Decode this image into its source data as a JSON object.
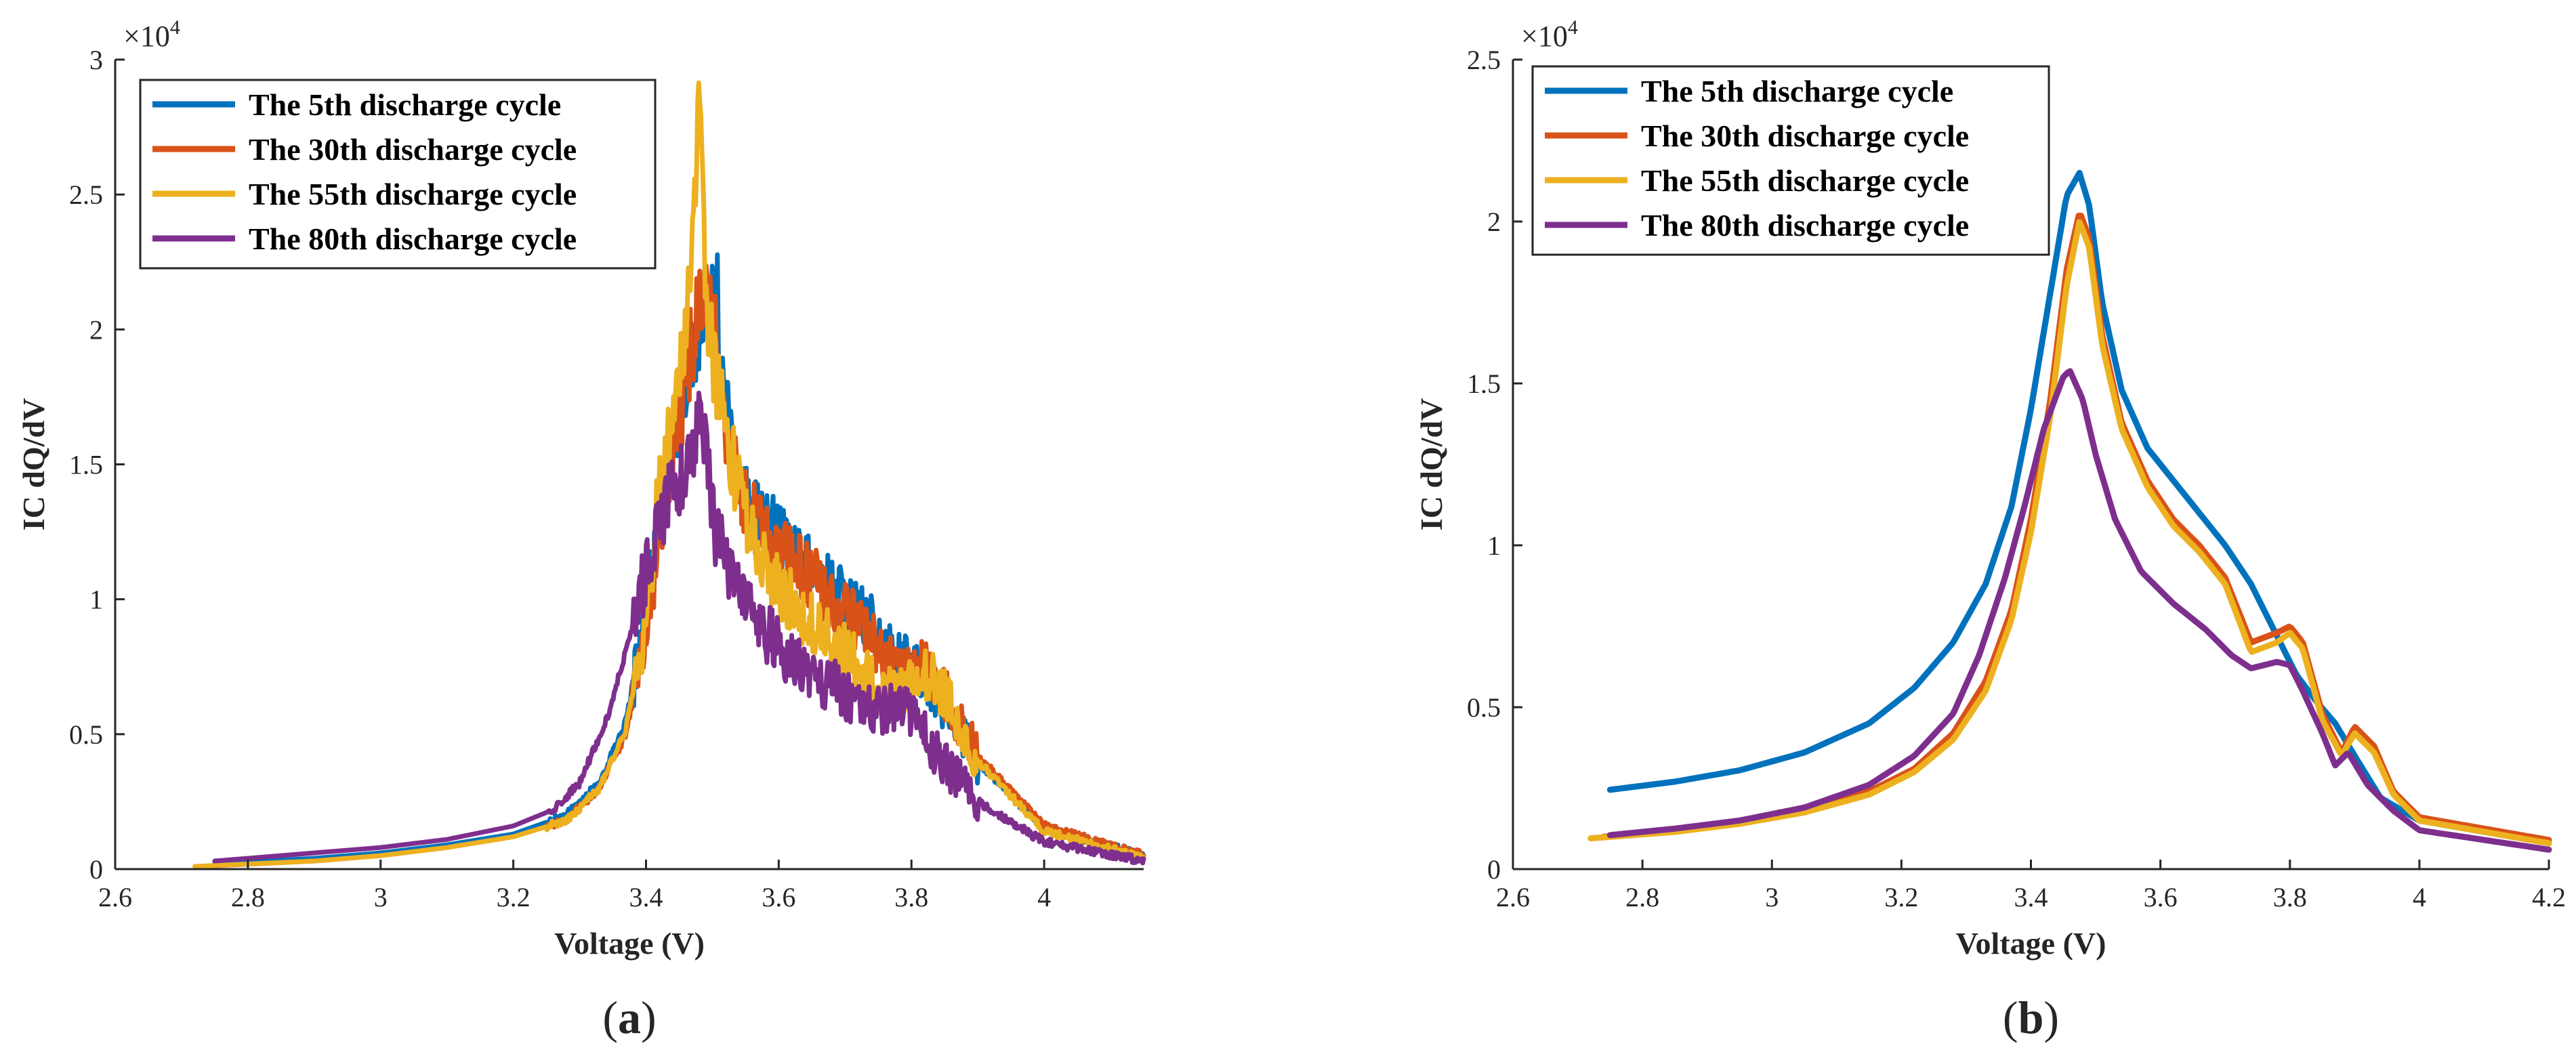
{
  "chart_data": [
    {
      "id": "a",
      "type": "line",
      "panel_label_prefix": "(",
      "panel_letter": "a",
      "panel_label_suffix": ")",
      "xlabel": "Voltage (V)",
      "ylabel": "IC dQ/dV",
      "y_multiplier_prefix": "×10",
      "y_multiplier_exp": "4",
      "xlim": [
        2.6,
        4.15
      ],
      "ylim": [
        0,
        3
      ],
      "xticks": [
        2.6,
        2.8,
        3,
        3.2,
        3.4,
        3.6,
        3.8,
        4
      ],
      "xtick_labels": [
        "2.6",
        "2.8",
        "3",
        "3.2",
        "3.4",
        "3.6",
        "3.8",
        "4"
      ],
      "yticks": [
        0,
        0.5,
        1,
        1.5,
        2,
        2.5,
        3
      ],
      "ytick_labels": [
        "0",
        "0.5",
        "1",
        "1.5",
        "2",
        "2.5",
        "3"
      ],
      "noisy": true,
      "series": [
        {
          "name": "The 5th discharge cycle",
          "color": "#0072BD",
          "x": [
            2.75,
            2.9,
            3.0,
            3.1,
            3.2,
            3.28,
            3.33,
            3.37,
            3.4,
            3.43,
            3.46,
            3.48,
            3.5,
            3.505,
            3.52,
            3.55,
            3.6,
            3.65,
            3.7,
            3.75,
            3.78,
            3.82,
            3.85,
            3.9,
            4.0,
            4.15
          ],
          "y": [
            0.02,
            0.04,
            0.06,
            0.09,
            0.13,
            0.2,
            0.32,
            0.55,
            0.95,
            1.45,
            1.85,
            2.0,
            2.1,
            2.18,
            1.7,
            1.4,
            1.22,
            1.1,
            1.0,
            0.88,
            0.78,
            0.72,
            0.6,
            0.4,
            0.15,
            0.05
          ]
        },
        {
          "name": "The 30th discharge cycle",
          "color": "#D95319",
          "x": [
            2.73,
            2.9,
            3.0,
            3.1,
            3.2,
            3.28,
            3.33,
            3.37,
            3.4,
            3.43,
            3.46,
            3.485,
            3.5,
            3.52,
            3.55,
            3.6,
            3.65,
            3.7,
            3.75,
            3.78,
            3.82,
            3.85,
            3.9,
            4.0,
            4.15
          ],
          "y": [
            0.01,
            0.03,
            0.05,
            0.08,
            0.12,
            0.18,
            0.3,
            0.5,
            0.88,
            1.4,
            1.82,
            2.12,
            2.05,
            1.65,
            1.35,
            1.18,
            1.08,
            0.95,
            0.82,
            0.72,
            0.75,
            0.65,
            0.42,
            0.16,
            0.05
          ]
        },
        {
          "name": "The 55th discharge cycle",
          "color": "#EDB120",
          "x": [
            2.72,
            2.9,
            3.0,
            3.1,
            3.2,
            3.28,
            3.33,
            3.37,
            3.4,
            3.42,
            3.45,
            3.47,
            3.48,
            3.49,
            3.51,
            3.54,
            3.58,
            3.63,
            3.7,
            3.76,
            3.8,
            3.83,
            3.86,
            3.9,
            4.0,
            4.15
          ],
          "y": [
            0.01,
            0.03,
            0.05,
            0.08,
            0.12,
            0.18,
            0.3,
            0.52,
            0.92,
            1.4,
            1.85,
            2.3,
            2.84,
            2.1,
            1.75,
            1.4,
            1.12,
            0.95,
            0.8,
            0.65,
            0.68,
            0.74,
            0.6,
            0.4,
            0.14,
            0.04
          ]
        },
        {
          "name": "The 80th discharge cycle",
          "color": "#7E2F8E",
          "x": [
            2.75,
            2.9,
            3.0,
            3.1,
            3.2,
            3.26,
            3.3,
            3.34,
            3.38,
            3.41,
            3.44,
            3.47,
            3.48,
            3.5,
            3.53,
            3.57,
            3.62,
            3.68,
            3.74,
            3.78,
            3.8,
            3.84,
            3.9,
            4.0,
            4.15
          ],
          "y": [
            0.03,
            0.06,
            0.08,
            0.11,
            0.16,
            0.22,
            0.32,
            0.55,
            0.9,
            1.2,
            1.4,
            1.5,
            1.78,
            1.3,
            1.05,
            0.9,
            0.78,
            0.68,
            0.58,
            0.6,
            0.58,
            0.42,
            0.25,
            0.1,
            0.03
          ]
        }
      ]
    },
    {
      "id": "b",
      "type": "line",
      "panel_label_prefix": "(",
      "panel_letter": "b",
      "panel_label_suffix": ")",
      "xlabel": "Voltage (V)",
      "ylabel": "IC dQ/dV",
      "y_multiplier_prefix": "×10",
      "y_multiplier_exp": "4",
      "xlim": [
        2.6,
        4.2
      ],
      "ylim": [
        0,
        2.5
      ],
      "xticks": [
        2.6,
        2.8,
        3,
        3.2,
        3.4,
        3.6,
        3.8,
        4,
        4.2
      ],
      "xtick_labels": [
        "2.6",
        "2.8",
        "3",
        "3.2",
        "3.4",
        "3.6",
        "3.8",
        "4",
        "4.2"
      ],
      "yticks": [
        0,
        0.5,
        1,
        1.5,
        2,
        2.5
      ],
      "ytick_labels": [
        "0",
        "0.5",
        "1",
        "1.5",
        "2",
        "2.5"
      ],
      "noisy": false,
      "series": [
        {
          "name": "The 5th discharge cycle",
          "color": "#0072BD",
          "x": [
            2.75,
            2.85,
            2.95,
            3.05,
            3.15,
            3.22,
            3.28,
            3.33,
            3.37,
            3.4,
            3.43,
            3.455,
            3.475,
            3.49,
            3.51,
            3.54,
            3.58,
            3.62,
            3.66,
            3.7,
            3.74,
            3.78,
            3.81,
            3.84,
            3.87,
            3.9,
            3.94,
            4.0,
            4.2
          ],
          "y": [
            0.245,
            0.27,
            0.305,
            0.36,
            0.45,
            0.56,
            0.7,
            0.88,
            1.12,
            1.42,
            1.78,
            2.08,
            2.15,
            2.05,
            1.75,
            1.48,
            1.3,
            1.2,
            1.1,
            1.0,
            0.88,
            0.72,
            0.6,
            0.52,
            0.45,
            0.35,
            0.22,
            0.15,
            0.08
          ]
        },
        {
          "name": "The 30th discharge cycle",
          "color": "#D95319",
          "x": [
            2.74,
            2.85,
            2.95,
            3.05,
            3.15,
            3.22,
            3.28,
            3.33,
            3.37,
            3.4,
            3.43,
            3.455,
            3.475,
            3.49,
            3.51,
            3.54,
            3.58,
            3.62,
            3.66,
            3.7,
            3.74,
            3.78,
            3.8,
            3.82,
            3.85,
            3.88,
            3.9,
            3.93,
            3.96,
            4.0,
            4.2
          ],
          "y": [
            0.1,
            0.12,
            0.145,
            0.18,
            0.24,
            0.31,
            0.42,
            0.58,
            0.8,
            1.08,
            1.45,
            1.85,
            2.03,
            1.95,
            1.65,
            1.38,
            1.2,
            1.08,
            1.0,
            0.9,
            0.7,
            0.73,
            0.75,
            0.7,
            0.48,
            0.36,
            0.44,
            0.38,
            0.24,
            0.16,
            0.09
          ]
        },
        {
          "name": "The 55th discharge cycle",
          "color": "#EDB120",
          "x": [
            2.72,
            2.85,
            2.95,
            3.05,
            3.15,
            3.22,
            3.28,
            3.33,
            3.37,
            3.4,
            3.43,
            3.455,
            3.475,
            3.49,
            3.51,
            3.54,
            3.58,
            3.62,
            3.66,
            3.7,
            3.74,
            3.78,
            3.8,
            3.82,
            3.85,
            3.88,
            3.9,
            3.93,
            3.96,
            4.0,
            4.2
          ],
          "y": [
            0.095,
            0.115,
            0.14,
            0.175,
            0.23,
            0.3,
            0.4,
            0.55,
            0.77,
            1.04,
            1.4,
            1.8,
            2.0,
            1.92,
            1.62,
            1.36,
            1.18,
            1.06,
            0.98,
            0.88,
            0.67,
            0.7,
            0.73,
            0.68,
            0.46,
            0.35,
            0.42,
            0.36,
            0.23,
            0.15,
            0.08
          ]
        },
        {
          "name": "The 80th discharge cycle",
          "color": "#7E2F8E",
          "x": [
            2.75,
            2.85,
            2.95,
            3.05,
            3.15,
            3.22,
            3.28,
            3.32,
            3.36,
            3.39,
            3.42,
            3.45,
            3.46,
            3.48,
            3.5,
            3.53,
            3.57,
            3.62,
            3.67,
            3.71,
            3.74,
            3.78,
            3.8,
            3.82,
            3.85,
            3.87,
            3.89,
            3.92,
            3.96,
            4.0,
            4.2
          ],
          "y": [
            0.105,
            0.125,
            0.15,
            0.19,
            0.26,
            0.35,
            0.48,
            0.66,
            0.9,
            1.12,
            1.36,
            1.52,
            1.54,
            1.45,
            1.28,
            1.08,
            0.92,
            0.82,
            0.74,
            0.66,
            0.62,
            0.64,
            0.63,
            0.55,
            0.42,
            0.32,
            0.36,
            0.26,
            0.18,
            0.12,
            0.06
          ]
        }
      ]
    }
  ]
}
